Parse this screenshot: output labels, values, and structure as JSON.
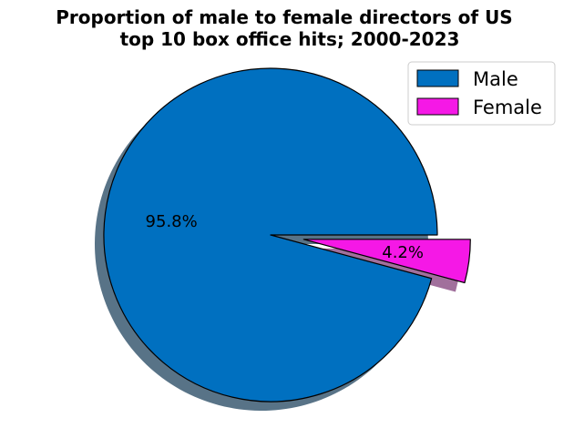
{
  "chart_data": {
    "type": "pie",
    "title_lines": [
      "Proportion of male to female directors of US",
      "top 10 box office hits; 2000-2023"
    ],
    "slices": [
      {
        "label": "Male",
        "value": 95.8,
        "pct_label": "95.8%",
        "color": "#0070C0",
        "shadow_color": "#587387",
        "explode": 0
      },
      {
        "label": "Female",
        "value": 4.2,
        "pct_label": "4.2%",
        "color": "#F518E6",
        "shadow_color": "#A1709C",
        "explode": 0.2
      }
    ],
    "start_angle_deg": 0,
    "direction": "counterclockwise",
    "shadow": true,
    "legend_position": "upper right"
  }
}
